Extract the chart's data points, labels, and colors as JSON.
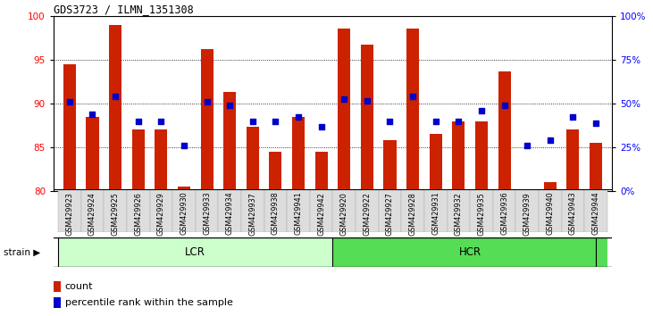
{
  "title": "GDS3723 / ILMN_1351308",
  "categories": [
    "GSM429923",
    "GSM429924",
    "GSM429925",
    "GSM429926",
    "GSM429929",
    "GSM429930",
    "GSM429933",
    "GSM429934",
    "GSM429937",
    "GSM429938",
    "GSM429941",
    "GSM429942",
    "GSM429920",
    "GSM429922",
    "GSM429927",
    "GSM429928",
    "GSM429931",
    "GSM429932",
    "GSM429935",
    "GSM429936",
    "GSM429939",
    "GSM429940",
    "GSM429943",
    "GSM429944"
  ],
  "bar_values": [
    94.5,
    88.5,
    99.0,
    87.0,
    87.0,
    80.5,
    96.2,
    91.3,
    87.3,
    84.5,
    88.5,
    84.5,
    98.5,
    96.7,
    85.8,
    98.5,
    86.5,
    88.0,
    88.0,
    93.7,
    80.0,
    81.0,
    87.0,
    85.5
  ],
  "blue_values": [
    90.2,
    88.8,
    90.8,
    88.0,
    88.0,
    85.2,
    90.2,
    89.8,
    88.0,
    88.0,
    88.5,
    87.3,
    90.5,
    90.3,
    88.0,
    90.8,
    88.0,
    88.0,
    89.2,
    89.8,
    85.2,
    85.8,
    88.5,
    87.8
  ],
  "lcr_count": 12,
  "hcr_count": 12,
  "ylim_left": [
    80,
    100
  ],
  "ylim_right": [
    0,
    100
  ],
  "yticks_left": [
    80,
    85,
    90,
    95,
    100
  ],
  "yticks_right": [
    0,
    25,
    50,
    75,
    100
  ],
  "ytick_labels_right": [
    "0%",
    "25%",
    "50%",
    "75%",
    "100%"
  ],
  "bar_color": "#cc2200",
  "blue_color": "#0000cc",
  "lcr_color": "#ccffcc",
  "hcr_color": "#55dd55",
  "tick_bg_color": "#dddddd",
  "legend_count_label": "count",
  "legend_pct_label": "percentile rank within the sample",
  "strain_label": "strain",
  "lcr_label": "LCR",
  "hcr_label": "HCR",
  "gridline_values": [
    85,
    90,
    95
  ]
}
